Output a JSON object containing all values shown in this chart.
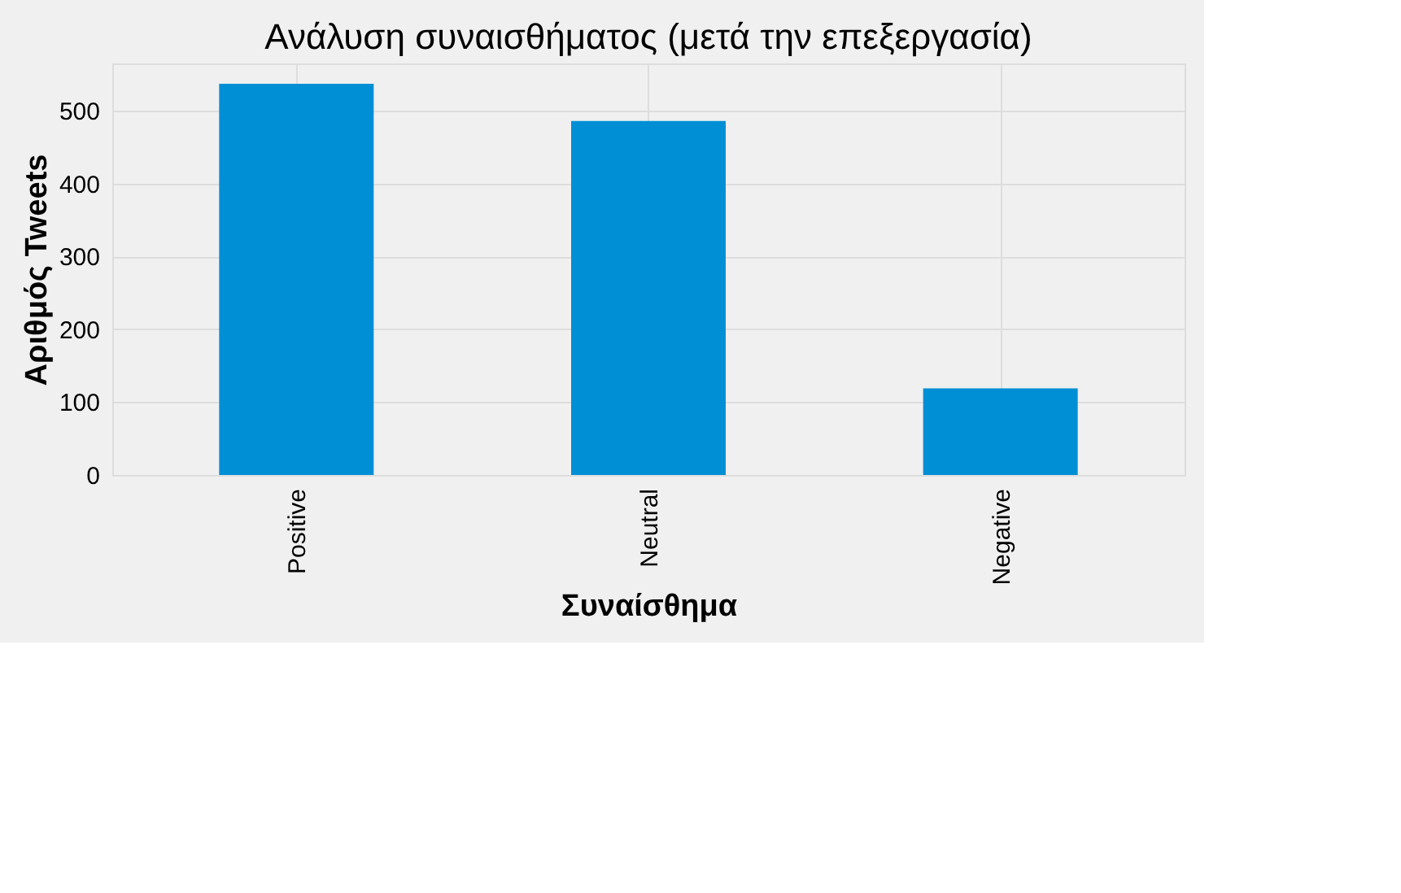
{
  "chart_data": {
    "type": "bar",
    "title": "Ανάλυση συναισθήματος (μετά την επεξεργασία)",
    "xlabel": "Συναίσθημα",
    "ylabel": "Αριθμός Tweets",
    "categories": [
      "Positive",
      "Neutral",
      "Negative"
    ],
    "values": [
      537,
      486,
      119
    ],
    "color": "#008fd5",
    "ylim": [
      0,
      565
    ],
    "yticks": [
      0,
      100,
      200,
      300,
      400,
      500
    ],
    "grid": true
  }
}
